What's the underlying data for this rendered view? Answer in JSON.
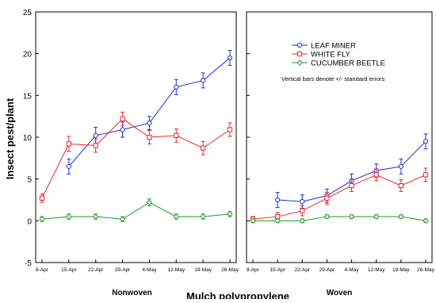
{
  "chart_data": {
    "type": "line",
    "xlabel": "Mulch polypropylene",
    "ylabel": "Insect pest/plant",
    "ylim": [
      -5,
      25
    ],
    "yticks": [
      "-5",
      "0",
      "5",
      "10",
      "15",
      "20",
      "25"
    ],
    "categories": [
      "8-Apr",
      "15-Apr",
      "22-Apr",
      "29-Apr",
      "4-May",
      "12-May",
      "19-May",
      "26-May"
    ],
    "grid": false,
    "legend": {
      "placement": "top-right of right panel",
      "note": "Vertical bars denote +/- standard errors"
    },
    "series_styles": [
      {
        "name": "LEAF MINER",
        "color": "#1f2fd6",
        "marker": "circle"
      },
      {
        "name": "WHITE FLY",
        "color": "#e8262b",
        "marker": "square"
      },
      {
        "name": "CUCUMBER BEETLE",
        "color": "#1f9a2a",
        "marker": "diamond"
      }
    ],
    "panels": [
      {
        "label": "Nonwoven",
        "series": [
          {
            "name": "LEAF MINER",
            "values": [
              null,
              6.5,
              10.2,
              10.9,
              11.7,
              16.0,
              16.8,
              19.5
            ],
            "errors": [
              null,
              0.9,
              1.0,
              0.9,
              0.8,
              0.9,
              0.9,
              0.9
            ]
          },
          {
            "name": "WHITE FLY",
            "values": [
              2.7,
              9.2,
              9.0,
              12.2,
              10.0,
              10.2,
              8.7,
              10.9
            ],
            "errors": [
              0.5,
              0.9,
              0.8,
              0.8,
              0.8,
              0.8,
              0.8,
              0.8
            ]
          },
          {
            "name": "CUCUMBER BEETLE",
            "values": [
              0.2,
              0.5,
              0.5,
              0.2,
              2.2,
              0.5,
              0.5,
              0.8
            ],
            "errors": [
              0.3,
              0.3,
              0.3,
              0.3,
              0.4,
              0.3,
              0.3,
              0.3
            ]
          }
        ]
      },
      {
        "label": "Woven",
        "series": [
          {
            "name": "LEAF MINER",
            "values": [
              null,
              2.5,
              2.3,
              3.0,
              4.8,
              6.0,
              6.5,
              9.5
            ],
            "errors": [
              null,
              0.9,
              0.8,
              0.8,
              0.8,
              0.8,
              0.9,
              0.9
            ]
          },
          {
            "name": "WHITE FLY",
            "values": [
              0.2,
              0.5,
              1.2,
              2.7,
              4.2,
              5.5,
              4.2,
              5.5
            ],
            "errors": [
              0.3,
              0.5,
              0.6,
              0.7,
              0.7,
              0.7,
              0.7,
              0.8
            ]
          },
          {
            "name": "CUCUMBER BEETLE",
            "values": [
              0.0,
              0.0,
              0.0,
              0.5,
              0.5,
              0.5,
              0.5,
              0.0
            ],
            "errors": [
              0.2,
              0.2,
              0.2,
              0.2,
              0.2,
              0.2,
              0.2,
              0.2
            ]
          }
        ]
      }
    ]
  }
}
